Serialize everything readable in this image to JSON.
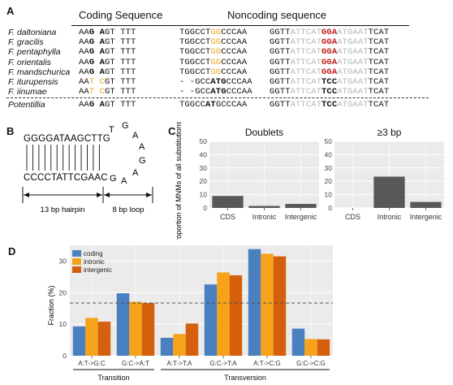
{
  "panel_labels": {
    "a": "A",
    "b": "B",
    "c": "C",
    "d": "D"
  },
  "panel_a": {
    "header_coding": "Coding Sequence",
    "header_noncoding": "Noncoding sequence",
    "rows": [
      {
        "species": "F. daltoniana",
        "coding": "AAG AGT TTT",
        "nc1": "TGGCCTGGCCCAA",
        "nc2": "GGTTATTCATGGAATGAATTCAT"
      },
      {
        "species": "F. gracilis",
        "coding": "AAG AGT TTT",
        "nc1": "TGGCCTGGCCCAA",
        "nc2": "GGTTATTCATGGAATGAATTCAT"
      },
      {
        "species": "F. pentaphylla",
        "coding": "AAG AGT TTT",
        "nc1": "TGGCCTGGCCCAA",
        "nc2": "GGTTATTCATGGAATGAATTCAT"
      },
      {
        "species": "F. orientalis",
        "coding": "AAG AGT TTT",
        "nc1": "TGGCCTGGCCCAA",
        "nc2": "GGTTATTCATGGAATGAATTCAT"
      },
      {
        "species": "F. mandschurica",
        "coding": "AAG AGT TTT",
        "nc1": "TGGCCTGGCCCAA",
        "nc2": "GGTTATTCATGGAATGAATTCAT"
      },
      {
        "species": "F. iturupensis",
        "coding": "AAT CGT TTT",
        "nc1": "--GCCATGCCCAA",
        "nc2": "GGTTATTCATTCCATGAATTCAT"
      },
      {
        "species": "F. iinumae",
        "coding": "AAT CGT TTT",
        "nc1": "--GCCATGCCCAA",
        "nc2": "GGTTATTCATTCCATGAATTCAT"
      }
    ],
    "outgroup": {
      "species": "Potentillia",
      "coding": "AAG AGT TTT",
      "nc1": "TGGCCATGCCCAA",
      "nc2": "GGTTATTCATTCCATGAATTCAT"
    }
  },
  "panel_b": {
    "top_strand": "GGGGATAAGCTTG",
    "bottom_strand": "CCCCTATTCGAAC",
    "loop_bases": [
      "T",
      "G",
      "A",
      "A",
      "G",
      "A",
      "A",
      "G"
    ],
    "hairpin_label": "13 bp hairpin",
    "loop_label": "8 bp loop"
  },
  "chart_data": [
    {
      "type": "bar",
      "title": "Doublets",
      "ylabel": "The proportion of MNMs of all substitutions (%)",
      "categories": [
        "CDS",
        "Intronic",
        "Intergenic"
      ],
      "values": [
        9,
        1.5,
        3
      ],
      "ylim": [
        0,
        50
      ],
      "yticks": [
        0,
        10,
        20,
        30,
        40,
        50
      ]
    },
    {
      "type": "bar",
      "title": "≥3 bp",
      "categories": [
        "CDS",
        "Intronic",
        "Intergenic"
      ],
      "values": [
        0,
        23.5,
        4.5
      ],
      "ylim": [
        0,
        50
      ],
      "yticks": [
        0,
        10,
        20,
        30,
        40,
        50
      ]
    },
    {
      "type": "bar",
      "ylabel": "Fraction (%)",
      "categories": [
        "A:T->G:C",
        "G:C->A:T",
        "A:T->T:A",
        "G:C->T:A",
        "A:T->C:G",
        "G:C->C:G"
      ],
      "series": [
        {
          "name": "coding",
          "values": [
            9.3,
            19.8,
            5.7,
            22.6,
            33.8,
            8.6
          ],
          "color": "#4a7fc0"
        },
        {
          "name": "intronic",
          "values": [
            12.0,
            17.1,
            6.9,
            26.4,
            32.3,
            5.3
          ],
          "color": "#f6a31b"
        },
        {
          "name": "intergenic",
          "values": [
            10.8,
            16.7,
            10.2,
            25.5,
            31.5,
            5.2
          ],
          "color": "#d4600e"
        }
      ],
      "ylim": [
        0,
        35
      ],
      "yticks": [
        0,
        10,
        20,
        30
      ],
      "reference_line": 16.7,
      "groups": [
        {
          "label": "Transition",
          "categories": [
            "A:T->G:C",
            "G:C->A:T"
          ]
        },
        {
          "label": "Transversion",
          "categories": [
            "A:T->T:A",
            "G:C->T:A",
            "A:T->C:G",
            "G:C->C:G"
          ]
        }
      ]
    }
  ]
}
